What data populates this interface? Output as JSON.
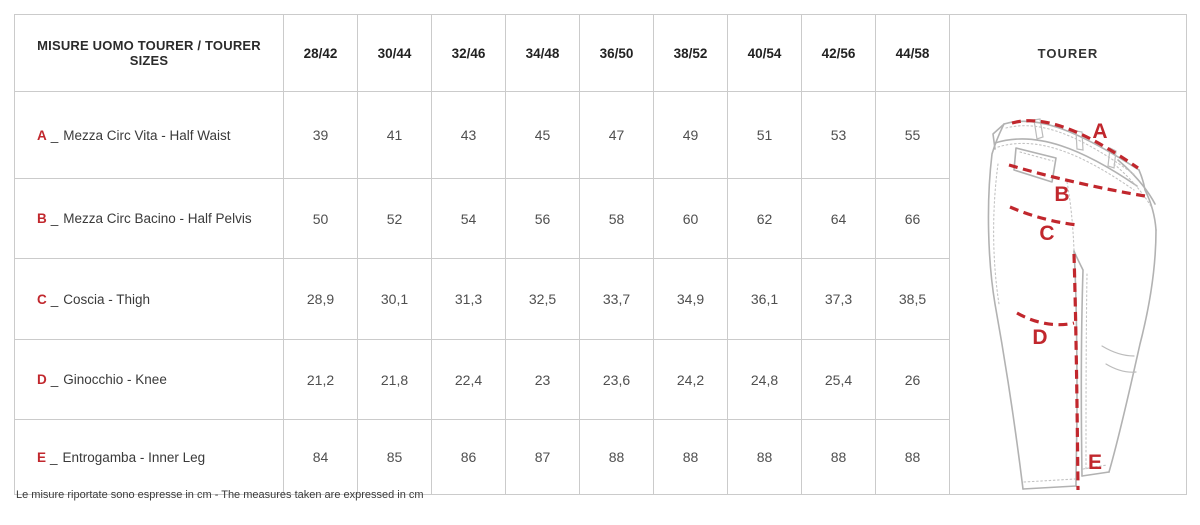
{
  "colors": {
    "accent_red": "#c1272d",
    "table_border": "#cbcbcb",
    "diagram_line": "#b2b2b2",
    "header_text": "#2b2b2b",
    "value_text": "#4f4f4f"
  },
  "table": {
    "title": "MISURE UOMO TOURER / TOURER SIZES",
    "size_headers": [
      "28/42",
      "30/44",
      "32/46",
      "34/48",
      "36/50",
      "38/52",
      "40/54",
      "42/56",
      "44/58"
    ],
    "diagram_header": "TOURER",
    "rows": [
      {
        "letter": "A",
        "separator": "_",
        "label": "Mezza Circ Vita - Half Waist",
        "values": [
          "39",
          "41",
          "43",
          "45",
          "47",
          "49",
          "51",
          "53",
          "55"
        ]
      },
      {
        "letter": "B",
        "separator": "_",
        "label": "Mezza Circ Bacino - Half Pelvis",
        "values": [
          "50",
          "52",
          "54",
          "56",
          "58",
          "60",
          "62",
          "64",
          "66"
        ]
      },
      {
        "letter": "C",
        "separator": "_",
        "label": "Coscia - Thigh",
        "values": [
          "28,9",
          "30,1",
          "31,3",
          "32,5",
          "33,7",
          "34,9",
          "36,1",
          "37,3",
          "38,5"
        ]
      },
      {
        "letter": "D",
        "separator": "_",
        "label": "Ginocchio - Knee",
        "values": [
          "21,2",
          "21,8",
          "22,4",
          "23",
          "23,6",
          "24,2",
          "24,8",
          "25,4",
          "26"
        ]
      },
      {
        "letter": "E",
        "separator": "_",
        "label": "Entrogamba - Inner Leg",
        "values": [
          "84",
          "85",
          "86",
          "87",
          "88",
          "88",
          "88",
          "88",
          "88"
        ]
      }
    ]
  },
  "diagram": {
    "labels": {
      "a": "A",
      "b": "B",
      "c": "C",
      "d": "D",
      "e": "E"
    }
  },
  "footer": {
    "note": "Le misure riportate sono espresse in cm - The measures taken are expressed in cm"
  },
  "chart_data": {
    "type": "table",
    "title": "MISURE UOMO TOURER / TOURER SIZES",
    "columns": [
      "28/42",
      "30/44",
      "32/46",
      "34/48",
      "36/50",
      "38/52",
      "40/54",
      "42/56",
      "44/58"
    ],
    "rows": [
      {
        "id": "A",
        "label_it": "Mezza Circ Vita",
        "label_en": "Half Waist",
        "values_cm": [
          39,
          41,
          43,
          45,
          47,
          49,
          51,
          53,
          55
        ]
      },
      {
        "id": "B",
        "label_it": "Mezza Circ Bacino",
        "label_en": "Half Pelvis",
        "values_cm": [
          50,
          52,
          54,
          56,
          58,
          60,
          62,
          64,
          66
        ]
      },
      {
        "id": "C",
        "label_it": "Coscia",
        "label_en": "Thigh",
        "values_cm": [
          28.9,
          30.1,
          31.3,
          32.5,
          33.7,
          34.9,
          36.1,
          37.3,
          38.5
        ]
      },
      {
        "id": "D",
        "label_it": "Ginocchio",
        "label_en": "Knee",
        "values_cm": [
          21.2,
          21.8,
          22.4,
          23,
          23.6,
          24.2,
          24.8,
          25.4,
          26
        ]
      },
      {
        "id": "E",
        "label_it": "Entrogamba",
        "label_en": "Inner Leg",
        "values_cm": [
          84,
          85,
          86,
          87,
          88,
          88,
          88,
          88,
          88
        ]
      }
    ],
    "unit": "cm",
    "note": "Le misure riportate sono espresse in cm - The measures taken are expressed in cm"
  }
}
